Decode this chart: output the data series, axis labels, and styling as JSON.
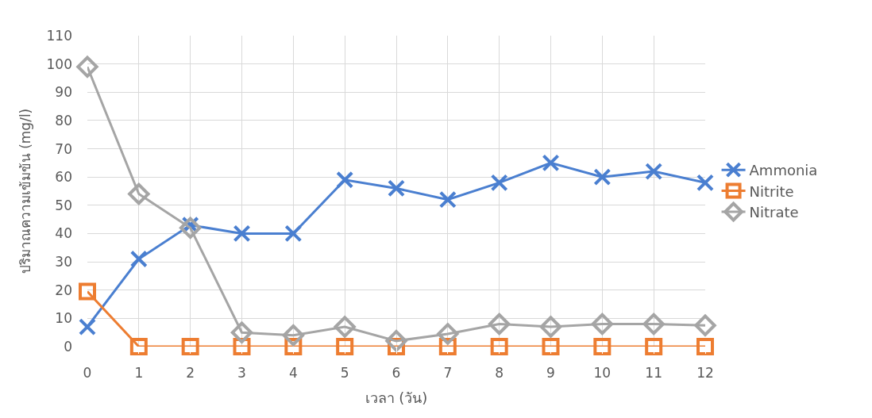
{
  "chart_data": {
    "type": "line",
    "xlabel": "เวลา (วัน)",
    "ylabel": "ปริมาณความเข้มข้น (mg/l)",
    "x": [
      0,
      1,
      2,
      3,
      4,
      5,
      6,
      7,
      8,
      9,
      10,
      11,
      12
    ],
    "xlim": [
      0,
      12
    ],
    "xticks": [
      0,
      1,
      2,
      3,
      4,
      5,
      6,
      7,
      8,
      9,
      10,
      11,
      12
    ],
    "ylim": [
      0,
      110
    ],
    "yticks": [
      0,
      10,
      20,
      30,
      40,
      50,
      60,
      70,
      80,
      90,
      100,
      110
    ],
    "grid": true,
    "legend": "right",
    "line_style": "solid",
    "series": [
      {
        "name": "Ammonia",
        "color": "#4a7fd0",
        "marker": "cross",
        "values": [
          7,
          31,
          43,
          40,
          40,
          59,
          56,
          52,
          58,
          65,
          60,
          62,
          58
        ]
      },
      {
        "name": "Nitrite",
        "color": "#ed7d31",
        "marker": "square",
        "values": [
          19.5,
          0,
          0,
          0,
          0,
          0,
          0,
          0,
          0,
          0,
          0,
          0,
          0
        ]
      },
      {
        "name": "Nitrate",
        "color": "#a5a5a5",
        "marker": "diamond",
        "values": [
          99,
          54,
          42,
          5,
          4,
          7,
          2,
          4.5,
          8,
          7,
          8,
          8,
          7.5
        ]
      }
    ]
  }
}
